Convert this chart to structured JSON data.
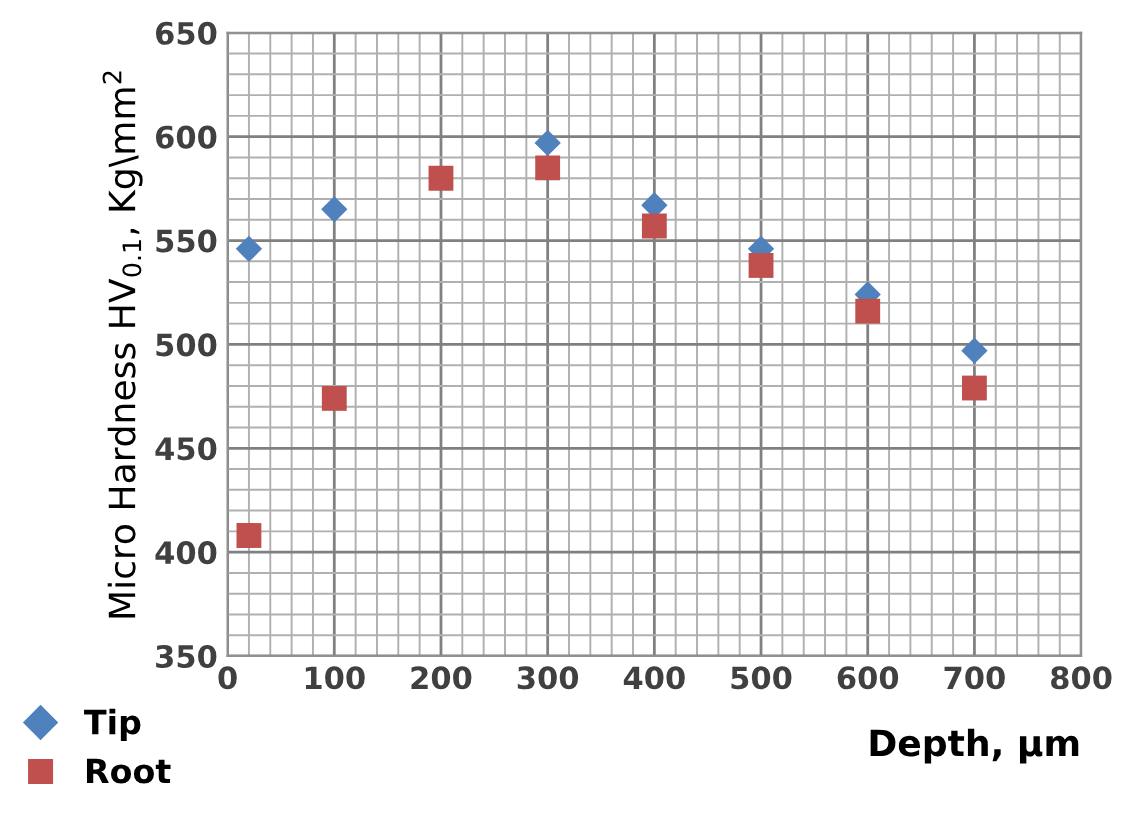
{
  "chart_data": {
    "type": "scatter",
    "xlabel": "Depth, µm",
    "ylabel": "Micro Hardness HV$_{0.1}$, Kg\\mm$^{2}$",
    "x": [
      20,
      100,
      200,
      300,
      400,
      500,
      600,
      700
    ],
    "series": [
      {
        "name": "Tip",
        "color": "#4f81bd",
        "marker": "diamond",
        "values": [
          546,
          565,
          null,
          597,
          567,
          546,
          524,
          497
        ]
      },
      {
        "name": "Root",
        "color": "#c0504d",
        "marker": "square",
        "values": [
          408,
          474,
          580,
          585,
          557,
          538,
          516,
          479
        ]
      }
    ],
    "xlim": [
      0,
      800
    ],
    "xticks": [
      0,
      100,
      200,
      300,
      400,
      500,
      600,
      700,
      800
    ],
    "ylim": [
      350,
      650
    ],
    "yticks": [
      350,
      400,
      450,
      500,
      550,
      600,
      650
    ],
    "grid": true,
    "legend": "bottom left"
  }
}
